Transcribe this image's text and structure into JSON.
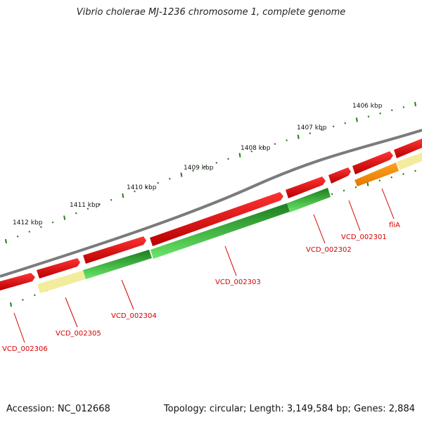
{
  "title": "Vibrio cholerae MJ-1236 chromosome 1, complete genome",
  "footer": {
    "accession": "Accession: NC_012668",
    "summary": "Topology: circular; Length: 3,149,584 bp; Genes: 2,884"
  },
  "ticks": [
    "1412 kbp",
    "1411 kbp",
    "1410 kbp",
    "1409 kbp",
    "1408 kbp",
    "1407 kbp",
    "1406 kbp"
  ],
  "genes": [
    "VCD_002306",
    "VCD_002305",
    "VCD_002304",
    "VCD_002303",
    "VCD_002302",
    "VCD_002301",
    "fliA"
  ],
  "colors": {
    "backbone": "#7a7a7a",
    "forward_gene": "#e00000",
    "reverse_gene_dark": "#1f8f1f",
    "reverse_gene_light": "#5fdc5f",
    "pale_feature": "#f3ec9c",
    "orange_gene": "#ff8c00",
    "tick": "#2a7a1a",
    "label": "#d40000"
  }
}
